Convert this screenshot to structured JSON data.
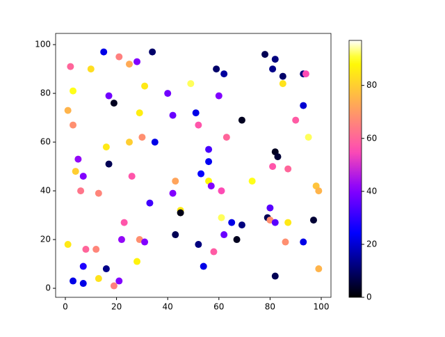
{
  "chart_data": {
    "type": "scatter",
    "colormap": "gnuplot2",
    "x": [
      2,
      3,
      1,
      3,
      5,
      4,
      7,
      6,
      1,
      8,
      7,
      3,
      7,
      10,
      15,
      21,
      25,
      28,
      34,
      17,
      19,
      31,
      29,
      40,
      42,
      49,
      59,
      62,
      60,
      51,
      52,
      69,
      63,
      16,
      25,
      30,
      35,
      17,
      26,
      13,
      43,
      42,
      53,
      56,
      56,
      56,
      57,
      61,
      45,
      45,
      33,
      23,
      22,
      29,
      31,
      43,
      52,
      54,
      58,
      61,
      65,
      62,
      69,
      67,
      73,
      12,
      16,
      13,
      19,
      21,
      28,
      78,
      82,
      81,
      85,
      93,
      94,
      85,
      93,
      90,
      95,
      82,
      83,
      81,
      87,
      98,
      99,
      80,
      79,
      80,
      82,
      87,
      86,
      93,
      97,
      82,
      99
    ],
    "y": [
      91,
      81,
      73,
      67,
      53,
      48,
      46,
      40,
      18,
      16,
      9,
      3,
      2,
      90,
      97,
      95,
      92,
      93,
      97,
      79,
      76,
      83,
      72,
      80,
      71,
      84,
      90,
      88,
      79,
      72,
      67,
      69,
      62,
      58,
      60,
      62,
      60,
      51,
      46,
      39,
      44,
      39,
      47,
      52,
      57,
      44,
      42,
      40,
      32,
      31,
      35,
      27,
      20,
      20,
      19,
      22,
      18,
      9,
      15,
      29,
      27,
      22,
      26,
      20,
      44,
      16,
      8,
      4,
      1,
      3,
      11,
      96,
      94,
      90,
      87,
      88,
      88,
      84,
      75,
      69,
      62,
      56,
      54,
      50,
      49,
      42,
      40,
      33,
      29,
      28,
      27,
      27,
      19,
      19,
      28,
      5,
      8
    ],
    "c": [
      60,
      90,
      75,
      68,
      42,
      80,
      40,
      63,
      85,
      60,
      28,
      22,
      22,
      83,
      22,
      65,
      73,
      40,
      10,
      38,
      3,
      85,
      86,
      38,
      37,
      92,
      10,
      15,
      40,
      22,
      57,
      3,
      60,
      85,
      80,
      68,
      22,
      8,
      57,
      66,
      72,
      40,
      25,
      23,
      33,
      88,
      40,
      55,
      85,
      2,
      32,
      57,
      42,
      68,
      40,
      8,
      12,
      22,
      58,
      92,
      22,
      37,
      12,
      3,
      90,
      66,
      13,
      84,
      65,
      40,
      87,
      8,
      12,
      13,
      10,
      12,
      55,
      84,
      20,
      58,
      92,
      3,
      5,
      57,
      60,
      78,
      75,
      35,
      8,
      68,
      35,
      85,
      68,
      22,
      5,
      8,
      75
    ],
    "xlim": [
      -3.8,
      103.8
    ],
    "ylim": [
      -3.7,
      104.6
    ],
    "clim": [
      0,
      97
    ],
    "xticks": [
      0,
      20,
      40,
      60,
      80,
      100
    ],
    "yticks": [
      0,
      20,
      40,
      60,
      80,
      100
    ],
    "cticks": [
      0,
      20,
      40,
      60,
      80
    ]
  }
}
